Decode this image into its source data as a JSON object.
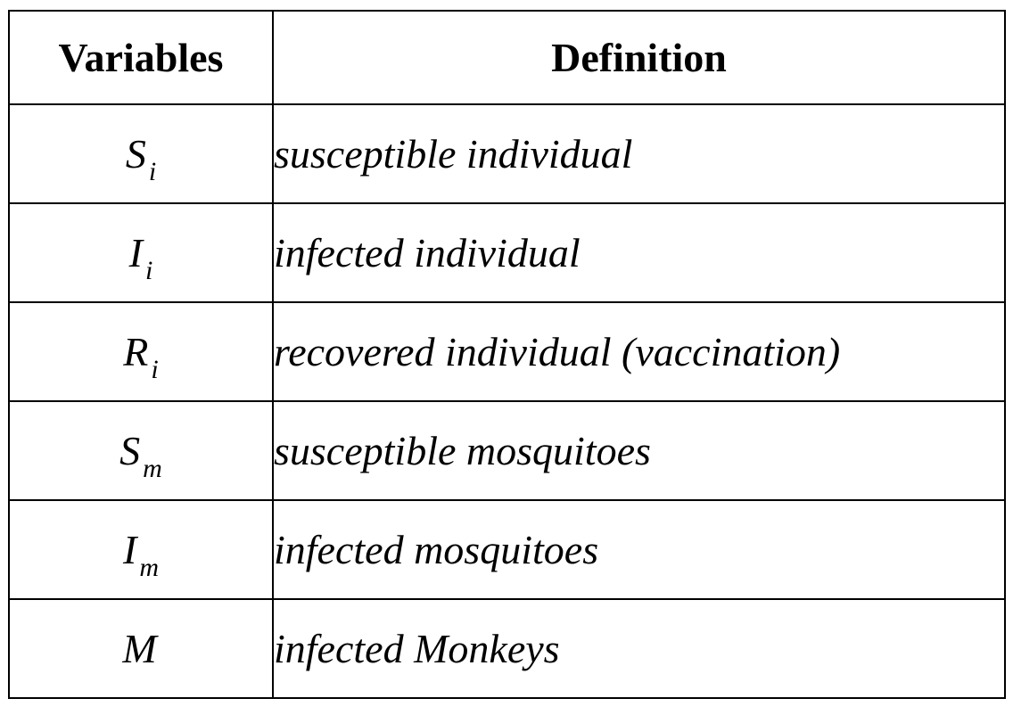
{
  "table": {
    "headers": {
      "variables": "Variables",
      "definition": "Definition"
    },
    "rows": [
      {
        "symbol": "S",
        "subscript": "i",
        "definition": "susceptible individual"
      },
      {
        "symbol": "I",
        "subscript": "i",
        "definition": "infected individual"
      },
      {
        "symbol": "R",
        "subscript": "i",
        "definition": "recovered individual (vaccination)"
      },
      {
        "symbol": "S",
        "subscript": "m",
        "definition": "susceptible mosquitoes"
      },
      {
        "symbol": "I",
        "subscript": "m",
        "definition": "infected mosquitoes"
      },
      {
        "symbol": "M",
        "subscript": "",
        "definition": "infected Monkeys"
      }
    ]
  }
}
